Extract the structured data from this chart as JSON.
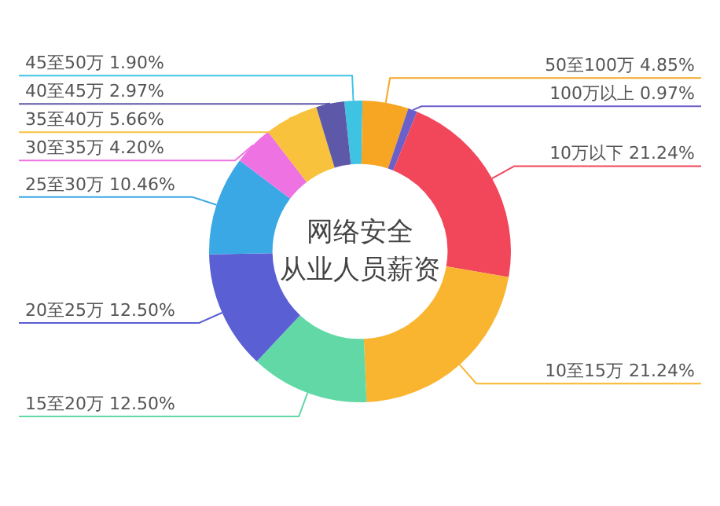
{
  "chart_data": {
    "type": "donut",
    "title": "网络安全从业人员薪资",
    "categories": [
      "45至50万",
      "50至100万",
      "100万以上",
      "10万以下",
      "10至15万",
      "15至20万",
      "20至25万",
      "25至30万",
      "30至35万",
      "35至40万",
      "40至45万"
    ],
    "values": [
      1.9,
      4.85,
      0.97,
      21.24,
      21.24,
      12.5,
      12.5,
      10.46,
      4.2,
      5.66,
      2.97
    ],
    "value_labels": [
      "1.90%",
      "4.85%",
      "0.97%",
      "21.24%",
      "21.24%",
      "12.50%",
      "12.50%",
      "10.46%",
      "4.20%",
      "5.66%",
      "2.97%"
    ],
    "colors": [
      "#3fc3e3",
      "#f6a623",
      "#6b5fc9",
      "#f2475b",
      "#f9b530",
      "#62d8a6",
      "#5a5fd3",
      "#3ba8e6",
      "#ef72e2",
      "#f8c23c",
      "#5d59a8"
    ],
    "legend": false
  }
}
